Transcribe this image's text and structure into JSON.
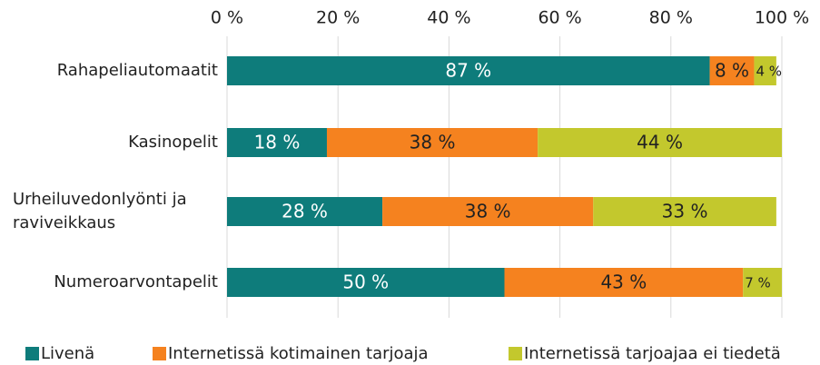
{
  "chart_data": {
    "type": "stacked-bar-horizontal",
    "categories": [
      "Rahapeliautomaatit",
      "Kasinopelit",
      "Urheiluvedonlyönti ja raviveikkaus",
      "Numeroarvontapelit"
    ],
    "series": [
      {
        "name": "Livenä",
        "color": "#0e7c7b",
        "values": [
          87,
          18,
          28,
          50
        ],
        "value_labels": [
          "87 %",
          "18 %",
          "28 %",
          "50 %"
        ]
      },
      {
        "name": "Internetissä kotimainen tarjoaja",
        "color": "#f5821f",
        "values": [
          8,
          38,
          38,
          43
        ],
        "value_labels": [
          "8 %",
          "38 %",
          "38 %",
          "43 %"
        ]
      },
      {
        "name": "Internetissä tarjoajaa ei tiedetä",
        "color": "#c3c82d",
        "values": [
          4,
          44,
          33,
          7
        ],
        "value_labels": [
          "4 %",
          "44 %",
          "33 %",
          "7 %"
        ]
      }
    ],
    "xlim": [
      0,
      100
    ],
    "xticks": [
      {
        "value": 0,
        "label": "0 %"
      },
      {
        "value": 20,
        "label": "20 %"
      },
      {
        "value": 40,
        "label": "40 %"
      },
      {
        "value": 60,
        "label": "60 %"
      },
      {
        "value": 80,
        "label": "80 %"
      },
      {
        "value": 100,
        "label": "100 %"
      }
    ],
    "grid": true,
    "legend": "bottom"
  }
}
